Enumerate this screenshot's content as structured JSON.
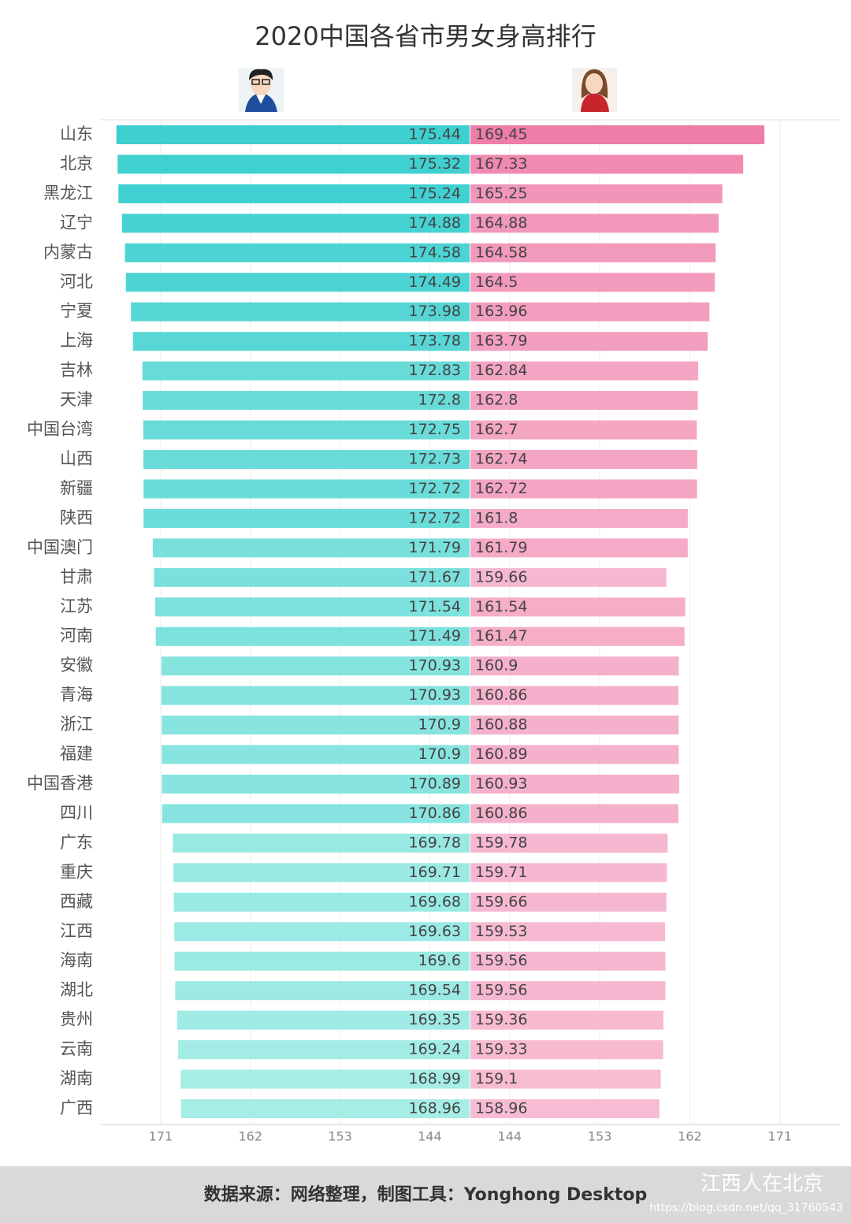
{
  "chart_data": {
    "type": "butterfly_bar",
    "title": "2020中国各省市男女身高排行",
    "categories": [
      "山东",
      "北京",
      "黑龙江",
      "辽宁",
      "内蒙古",
      "河北",
      "宁夏",
      "上海",
      "吉林",
      "天津",
      "中国台湾",
      "山西",
      "新疆",
      "陕西",
      "中国澳门",
      "甘肃",
      "江苏",
      "河南",
      "安徽",
      "青海",
      "浙江",
      "福建",
      "中国香港",
      "四川",
      "广东",
      "重庆",
      "西藏",
      "江西",
      "海南",
      "湖北",
      "贵州",
      "云南",
      "湖南",
      "广西"
    ],
    "series": [
      {
        "name": "男",
        "side": "left",
        "colors": [
          "#a6ede6",
          "#3ecfd0"
        ],
        "values": [
          175.44,
          175.32,
          175.24,
          174.88,
          174.58,
          174.49,
          173.98,
          173.78,
          172.83,
          172.8,
          172.75,
          172.73,
          172.72,
          172.72,
          171.79,
          171.67,
          171.54,
          171.49,
          170.93,
          170.93,
          170.9,
          170.9,
          170.89,
          170.86,
          169.78,
          169.71,
          169.68,
          169.63,
          169.6,
          169.54,
          169.35,
          169.24,
          168.99,
          168.96
        ]
      },
      {
        "name": "女",
        "side": "right",
        "colors": [
          "#f7bcd3",
          "#ee7da7"
        ],
        "values": [
          169.45,
          167.33,
          165.25,
          164.88,
          164.58,
          164.5,
          163.96,
          163.79,
          162.84,
          162.8,
          162.7,
          162.74,
          162.72,
          161.8,
          161.79,
          159.66,
          161.54,
          161.47,
          160.9,
          160.86,
          160.88,
          160.89,
          160.93,
          160.86,
          159.78,
          159.71,
          159.66,
          159.53,
          159.56,
          159.56,
          159.36,
          159.33,
          159.1,
          158.96
        ]
      }
    ],
    "xlim": [
      140,
      177
    ],
    "xticks": [
      171,
      162,
      153,
      144
    ],
    "grid": true,
    "footer": {
      "source": "数据来源：网络整理，制图工具：Yonghong Desktop",
      "watermark": "江西人在北京",
      "url": "https://blog.csdn.net/qq_31760543"
    }
  }
}
